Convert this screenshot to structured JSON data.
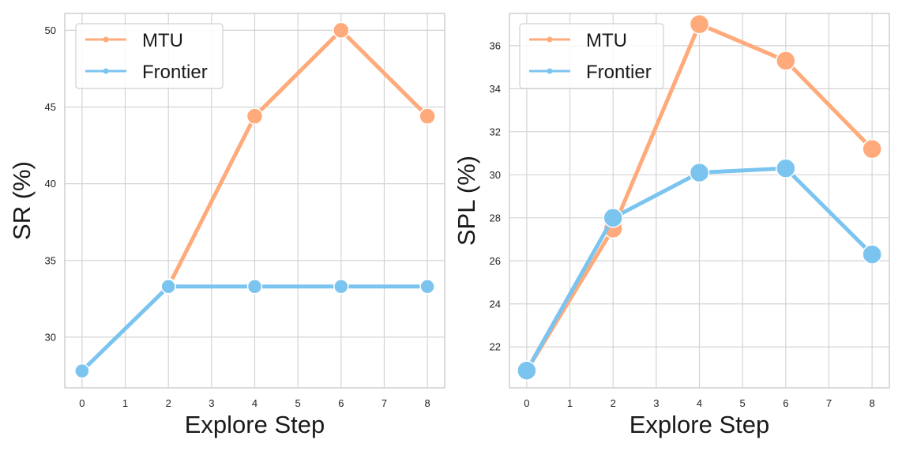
{
  "chart_data": [
    {
      "type": "line",
      "xlabel": "Explore Step",
      "ylabel": "SR (%)",
      "xlim": [
        -0.4,
        8.4
      ],
      "ylim": [
        26.7,
        51.1
      ],
      "xticks": [
        0,
        1,
        2,
        3,
        4,
        5,
        6,
        7,
        8
      ],
      "yticks": [
        30,
        35,
        40,
        45,
        50
      ],
      "grid": true,
      "legend_position": "top-left",
      "series": [
        {
          "name": "MTU",
          "color": "#FFAA7A",
          "x": [
            2,
            4,
            6,
            8
          ],
          "y": [
            33.3,
            44.4,
            50.0,
            44.4
          ]
        },
        {
          "name": "Frontier",
          "color": "#7CC4F0",
          "x": [
            0,
            2,
            4,
            6,
            8
          ],
          "y": [
            27.8,
            33.3,
            33.3,
            33.3,
            33.3
          ]
        }
      ]
    },
    {
      "type": "line",
      "xlabel": "Explore Step",
      "ylabel": "SPL (%)",
      "xlim": [
        -0.4,
        8.4
      ],
      "ylim": [
        20.1,
        37.5
      ],
      "xticks": [
        0,
        1,
        2,
        3,
        4,
        5,
        6,
        7,
        8
      ],
      "yticks": [
        22,
        24,
        26,
        28,
        30,
        32,
        34,
        36
      ],
      "grid": true,
      "legend_position": "top-left",
      "series": [
        {
          "name": "MTU",
          "color": "#FFAA7A",
          "x": [
            0,
            2,
            4,
            6,
            8
          ],
          "y": [
            20.9,
            27.5,
            37.0,
            35.3,
            31.2
          ]
        },
        {
          "name": "Frontier",
          "color": "#7CC4F0",
          "x": [
            0,
            2,
            4,
            6,
            8
          ],
          "y": [
            20.9,
            28.0,
            30.1,
            30.3,
            26.3
          ]
        }
      ]
    }
  ]
}
